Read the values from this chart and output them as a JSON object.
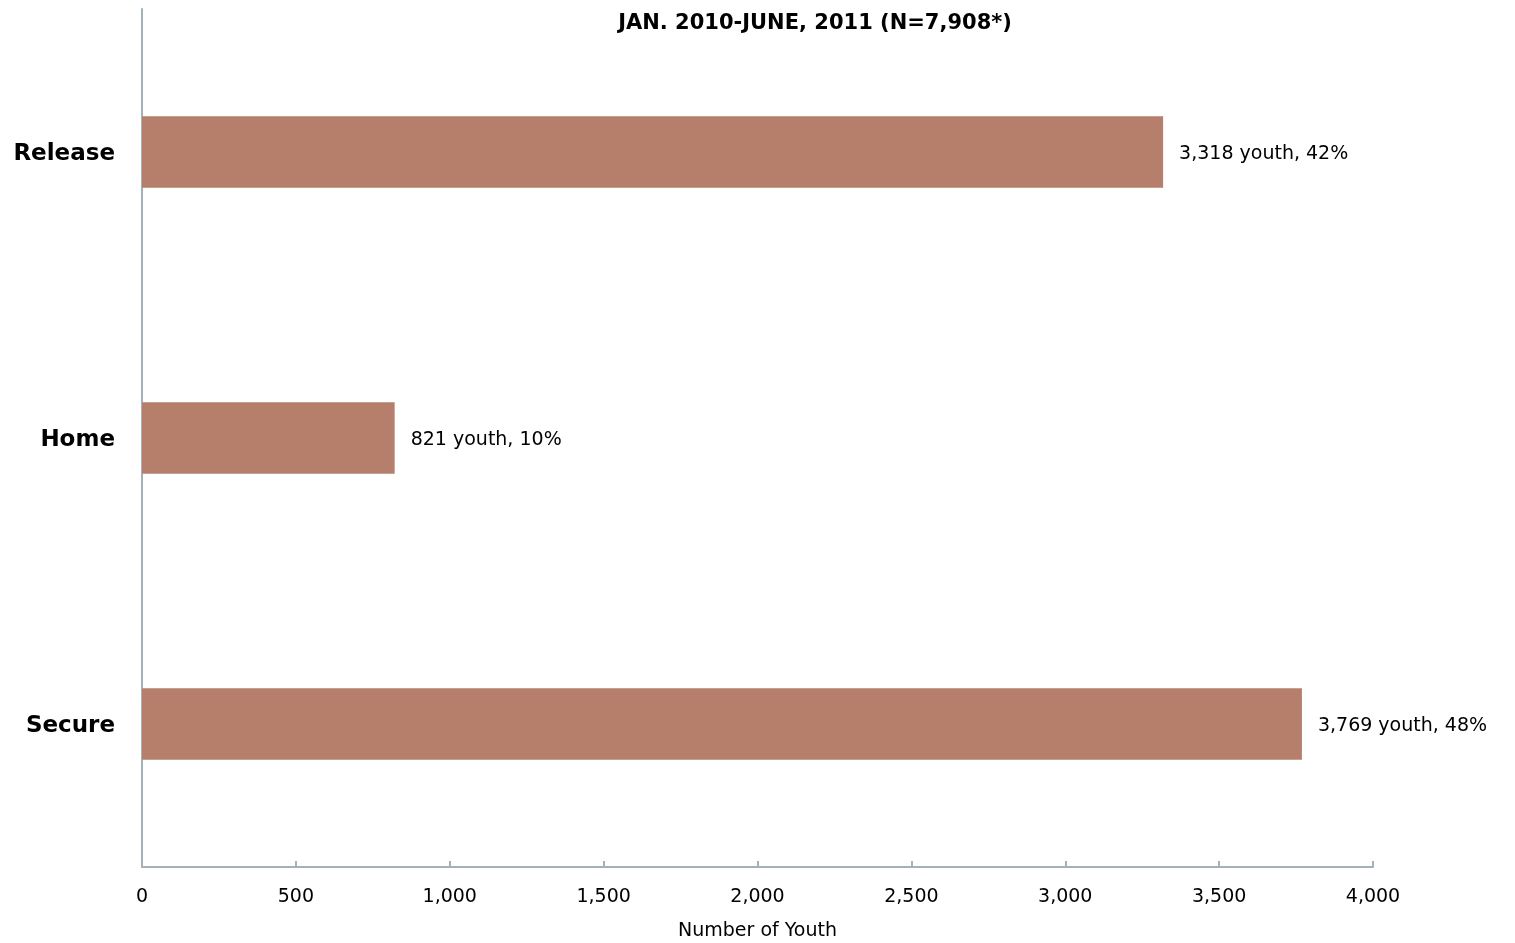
{
  "chart_data": {
    "type": "bar",
    "orientation": "horizontal",
    "title": "JAN. 2010-JUNE, 2011 (N=7,908*)",
    "xlabel": "Number of Youth",
    "categories": [
      "Release",
      "Home",
      "Secure"
    ],
    "values": [
      3318,
      821,
      3769
    ],
    "color": "#b57f6b",
    "value_labels": [
      "3,318 youth, 42%",
      "821 youth, 10%",
      "3,769 youth, 48%"
    ],
    "xlim": [
      0,
      4000
    ],
    "xticks": [
      {
        "value": 0,
        "label": "0"
      },
      {
        "value": 500,
        "label": "500"
      },
      {
        "value": 1000,
        "label": "1,000"
      },
      {
        "value": 1500,
        "label": "1,500"
      },
      {
        "value": 2000,
        "label": "2,000"
      },
      {
        "value": 2500,
        "label": "2,500"
      },
      {
        "value": 3000,
        "label": "3,000"
      },
      {
        "value": 3500,
        "label": "3,500"
      },
      {
        "value": 4000,
        "label": "4,000"
      }
    ],
    "grid": false
  }
}
